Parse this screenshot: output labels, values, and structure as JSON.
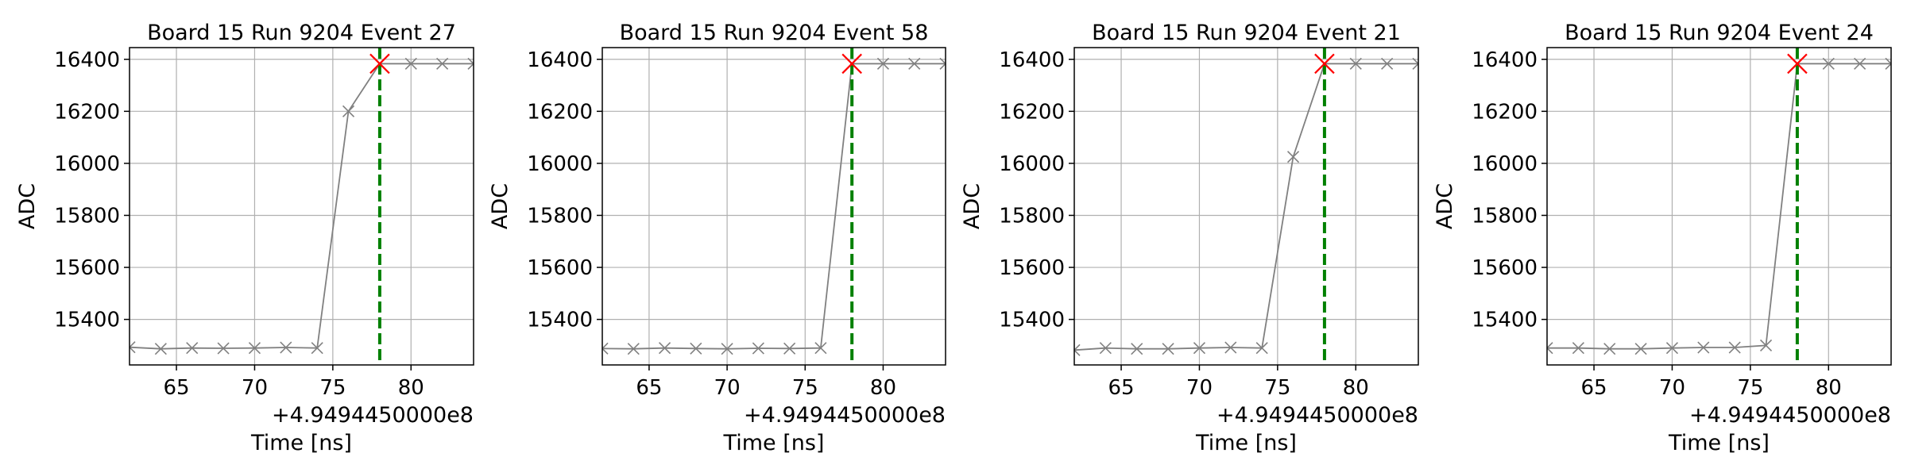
{
  "chart_data": [
    {
      "type": "line",
      "title": "Board 15 Run 9204 Event 27",
      "xlabel": "Time [ns]",
      "ylabel": "ADC",
      "x_offset_label": "+4.9494450000e8",
      "xlim": [
        62,
        84
      ],
      "ylim": [
        15225,
        16445
      ],
      "xticks": [
        65,
        70,
        75,
        80
      ],
      "yticks": [
        15400,
        15600,
        15800,
        16000,
        16200,
        16400
      ],
      "grid": true,
      "series": [
        {
          "x": [
            62,
            64,
            66,
            68,
            70,
            72,
            74,
            76,
            78,
            80,
            82,
            84
          ],
          "y": [
            15293,
            15287,
            15290,
            15289,
            15290,
            15292,
            15290,
            16200,
            16383,
            16383,
            16383,
            16383
          ],
          "marker": "x",
          "color": "#808080"
        }
      ],
      "peak": {
        "x": 78,
        "y": 16383,
        "color": "#ff0000"
      },
      "vline": {
        "x": 78,
        "color": "#008000",
        "style": "dashed"
      }
    },
    {
      "type": "line",
      "title": "Board 15 Run 9204 Event 58",
      "xlabel": "Time [ns]",
      "ylabel": "ADC",
      "x_offset_label": "+4.9494450000e8",
      "xlim": [
        62,
        84
      ],
      "ylim": [
        15225,
        16445
      ],
      "xticks": [
        65,
        70,
        75,
        80
      ],
      "yticks": [
        15400,
        15600,
        15800,
        16000,
        16200,
        16400
      ],
      "grid": true,
      "series": [
        {
          "x": [
            62,
            64,
            66,
            68,
            70,
            72,
            74,
            76,
            78,
            80,
            82,
            84
          ],
          "y": [
            15288,
            15287,
            15290,
            15288,
            15287,
            15289,
            15288,
            15290,
            16383,
            16383,
            16383,
            16383
          ],
          "marker": "x",
          "color": "#808080"
        }
      ],
      "peak": {
        "x": 78,
        "y": 16383,
        "color": "#ff0000"
      },
      "vline": {
        "x": 78,
        "color": "#008000",
        "style": "dashed"
      }
    },
    {
      "type": "line",
      "title": "Board 15 Run 9204 Event 21",
      "xlabel": "Time [ns]",
      "ylabel": "ADC",
      "x_offset_label": "+4.9494450000e8",
      "xlim": [
        62,
        84
      ],
      "ylim": [
        15225,
        16445
      ],
      "xticks": [
        65,
        70,
        75,
        80
      ],
      "yticks": [
        15400,
        15600,
        15800,
        16000,
        16200,
        16400
      ],
      "grid": true,
      "series": [
        {
          "x": [
            62,
            64,
            66,
            68,
            70,
            72,
            74,
            76,
            78,
            80,
            82,
            84
          ],
          "y": [
            15282,
            15290,
            15287,
            15287,
            15290,
            15292,
            15290,
            16025,
            16383,
            16383,
            16383,
            16383
          ],
          "marker": "x",
          "color": "#808080"
        }
      ],
      "peak": {
        "x": 78,
        "y": 16383,
        "color": "#ff0000"
      },
      "vline": {
        "x": 78,
        "color": "#008000",
        "style": "dashed"
      }
    },
    {
      "type": "line",
      "title": "Board 15 Run 9204 Event 24",
      "xlabel": "Time [ns]",
      "ylabel": "ADC",
      "x_offset_label": "+4.9494450000e8",
      "xlim": [
        62,
        84
      ],
      "ylim": [
        15225,
        16445
      ],
      "xticks": [
        65,
        70,
        75,
        80
      ],
      "yticks": [
        15400,
        15600,
        15800,
        16000,
        16200,
        16400
      ],
      "grid": true,
      "series": [
        {
          "x": [
            62,
            64,
            66,
            68,
            70,
            72,
            74,
            76,
            78,
            80,
            82,
            84
          ],
          "y": [
            15290,
            15290,
            15287,
            15287,
            15290,
            15292,
            15292,
            15300,
            16383,
            16383,
            16383,
            16383
          ],
          "marker": "x",
          "color": "#808080"
        }
      ],
      "peak": {
        "x": 78,
        "y": 16383,
        "color": "#ff0000"
      },
      "vline": {
        "x": 78,
        "color": "#008000",
        "style": "dashed"
      }
    }
  ]
}
